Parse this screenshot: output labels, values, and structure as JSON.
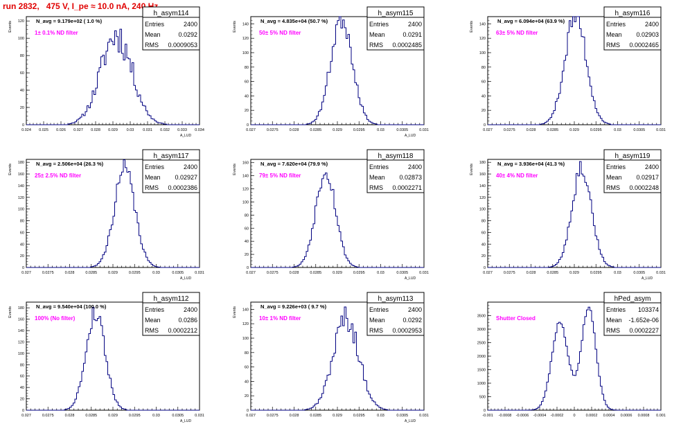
{
  "page_title": "run 2832,   475 V, I_pe ≈ 10.0 nA, 240 Hz",
  "colors": {
    "title": "#e00000",
    "annotation": "#ff00ff",
    "histogram": "#000080",
    "axis": "#000000"
  },
  "chart_data": [
    {
      "type": "bar",
      "name": "h_asym114",
      "ylabel": "Events",
      "xlabel": "A_LUD",
      "header": "N_avg = 9.179e+02 ( 1.0 %)",
      "annotation": "1± 0.1% ND filter",
      "stats": {
        "entries_label": "Entries",
        "entries": "2400",
        "mean_label": "Mean",
        "mean": "0.0292",
        "rms_label": "RMS",
        "rms": "0.0009053"
      },
      "xlim": [
        0.024,
        0.034
      ],
      "ylim": [
        0,
        125
      ],
      "x_ticks": [
        "0.024",
        "0.025",
        "0.026",
        "0.027",
        "0.028",
        "0.029",
        "0.03",
        "0.031",
        "0.032",
        "0.033",
        "0.034"
      ],
      "y_ticks": [
        "0",
        "20",
        "40",
        "60",
        "80",
        "100",
        "120"
      ],
      "hist": {
        "mean": 0.0292,
        "sigma": 0.0009053,
        "peak": 104,
        "bins": 100,
        "seed": 11,
        "jitter": 0.2
      }
    },
    {
      "type": "bar",
      "name": "h_asym115",
      "ylabel": "Events",
      "xlabel": "A_LUD",
      "header": "N_avg = 4.835e+04 (50.7 %)",
      "annotation": "50± 5% ND filter",
      "stats": {
        "entries_label": "Entries",
        "entries": "2400",
        "mean_label": "Mean",
        "mean": "0.0291",
        "rms_label": "RMS",
        "rms": "0.0002485"
      },
      "xlim": [
        0.027,
        0.031
      ],
      "ylim": [
        0,
        150
      ],
      "x_ticks": [
        "0.027",
        "0.0275",
        "0.028",
        "0.0285",
        "0.029",
        "0.0295",
        "0.03",
        "0.0305",
        "0.031"
      ],
      "y_ticks": [
        "0",
        "20",
        "40",
        "60",
        "80",
        "100",
        "120",
        "140"
      ],
      "hist": {
        "mean": 0.0291,
        "sigma": 0.0002485,
        "peak": 150,
        "bins": 100,
        "seed": 23,
        "jitter": 0.12
      }
    },
    {
      "type": "bar",
      "name": "h_asym116",
      "ylabel": "Events",
      "xlabel": "",
      "header": "N_avg = 6.094e+04 (63.9 %)",
      "annotation": "63± 5% ND filter",
      "stats": {
        "entries_label": "Entries",
        "entries": "2400",
        "mean_label": "Mean",
        "mean": "0.02903",
        "rms_label": "RMS",
        "rms": "0.0002465"
      },
      "xlim": [
        0.027,
        0.031
      ],
      "ylim": [
        0,
        150
      ],
      "x_ticks": [
        "0.027",
        "0.0275",
        "0.028",
        "0.0285",
        "0.029",
        "0.0295",
        "0.03",
        "0.0305",
        "0.031"
      ],
      "y_ticks": [
        "0",
        "20",
        "40",
        "60",
        "80",
        "100",
        "120",
        "140"
      ],
      "hist": {
        "mean": 0.02903,
        "sigma": 0.0002465,
        "peak": 152,
        "bins": 100,
        "seed": 37,
        "jitter": 0.12
      }
    },
    {
      "type": "bar",
      "name": "h_asym117",
      "ylabel": "Events",
      "xlabel": "A_LUD",
      "header": "N_avg = 2.506e+04 (26.3 %)",
      "annotation": "25± 2.5% ND filter",
      "stats": {
        "entries_label": "Entries",
        "entries": "2400",
        "mean_label": "Mean",
        "mean": "0.02927",
        "rms_label": "RMS",
        "rms": "0.0002386"
      },
      "xlim": [
        0.027,
        0.031
      ],
      "ylim": [
        0,
        185
      ],
      "x_ticks": [
        "0.027",
        "0.0275",
        "0.028",
        "0.0285",
        "0.029",
        "0.0295",
        "0.03",
        "0.0305",
        "0.031"
      ],
      "y_ticks": [
        "0",
        "20",
        "40",
        "60",
        "80",
        "100",
        "120",
        "140",
        "160",
        "180"
      ],
      "hist": {
        "mean": 0.02927,
        "sigma": 0.0002386,
        "peak": 168,
        "bins": 100,
        "seed": 41,
        "jitter": 0.1
      }
    },
    {
      "type": "bar",
      "name": "h_asym118",
      "ylabel": "Events",
      "xlabel": "A_LUD",
      "header": "N_avg = 7.620e+04 (79.9 %)",
      "annotation": "79± 5% ND filter",
      "stats": {
        "entries_label": "Entries",
        "entries": "2400",
        "mean_label": "Mean",
        "mean": "0.02873",
        "rms_label": "RMS",
        "rms": "0.0002271"
      },
      "xlim": [
        0.027,
        0.031
      ],
      "ylim": [
        0,
        165
      ],
      "x_ticks": [
        "0.027",
        "0.0275",
        "0.028",
        "0.0285",
        "0.029",
        "0.0295",
        "0.03",
        "0.0305",
        "0.031"
      ],
      "y_ticks": [
        "0",
        "20",
        "40",
        "60",
        "80",
        "100",
        "120",
        "140",
        "160"
      ],
      "hist": {
        "mean": 0.02873,
        "sigma": 0.0002271,
        "peak": 150,
        "bins": 100,
        "seed": 53,
        "jitter": 0.1
      }
    },
    {
      "type": "bar",
      "name": "h_asym119",
      "ylabel": "Events",
      "xlabel": "A_LUD",
      "header": "N_avg = 3.936e+04 (41.3 %)",
      "annotation": "40± 4% ND filter",
      "stats": {
        "entries_label": "Entries",
        "entries": "2400",
        "mean_label": "Mean",
        "mean": "0.02917",
        "rms_label": "RMS",
        "rms": "0.0002248"
      },
      "xlim": [
        0.027,
        0.031
      ],
      "ylim": [
        0,
        185
      ],
      "x_ticks": [
        "0.027",
        "0.0275",
        "0.028",
        "0.0285",
        "0.029",
        "0.0295",
        "0.03",
        "0.0305",
        "0.031"
      ],
      "y_ticks": [
        "0",
        "20",
        "40",
        "60",
        "80",
        "100",
        "120",
        "140",
        "160",
        "180"
      ],
      "hist": {
        "mean": 0.02917,
        "sigma": 0.0002248,
        "peak": 172,
        "bins": 100,
        "seed": 67,
        "jitter": 0.1
      }
    },
    {
      "type": "bar",
      "name": "h_asym112",
      "ylabel": "Events",
      "xlabel": "A_LUD",
      "header": "N_avg = 9.540e+04 (100.0 %)",
      "annotation": "100% (No filter)",
      "stats": {
        "entries_label": "Entries",
        "entries": "2400",
        "mean_label": "Mean",
        "mean": "0.0286",
        "rms_label": "RMS",
        "rms": "0.0002212"
      },
      "xlim": [
        0.027,
        0.031
      ],
      "ylim": [
        0,
        190
      ],
      "x_ticks": [
        "0.027",
        "0.0275",
        "0.028",
        "0.0285",
        "0.029",
        "0.0295",
        "0.03",
        "0.0305",
        "0.031"
      ],
      "y_ticks": [
        "0",
        "20",
        "40",
        "60",
        "80",
        "100",
        "120",
        "140",
        "160",
        "180"
      ],
      "hist": {
        "mean": 0.0286,
        "sigma": 0.0002212,
        "peak": 172,
        "bins": 100,
        "seed": 79,
        "jitter": 0.1
      }
    },
    {
      "type": "bar",
      "name": "h_asym113",
      "ylabel": "Events",
      "xlabel": "A_LUD",
      "header": "N_avg = 9.226e+03 ( 9.7 %)",
      "annotation": "10± 1% ND filter",
      "stats": {
        "entries_label": "Entries",
        "entries": "2400",
        "mean_label": "Mean",
        "mean": "0.0292",
        "rms_label": "RMS",
        "rms": "0.0002953"
      },
      "xlim": [
        0.027,
        0.031
      ],
      "ylim": [
        0,
        150
      ],
      "x_ticks": [
        "0.027",
        "0.0275",
        "0.028",
        "0.0285",
        "0.029",
        "0.0295",
        "0.03",
        "0.0305",
        "0.031"
      ],
      "y_ticks": [
        "0",
        "20",
        "40",
        "60",
        "80",
        "100",
        "120",
        "140"
      ],
      "hist": {
        "mean": 0.0292,
        "sigma": 0.0002953,
        "peak": 128,
        "bins": 100,
        "seed": 97,
        "jitter": 0.14
      }
    },
    {
      "type": "bar",
      "name": "hPed_asym",
      "ylabel": "",
      "xlabel": "",
      "header": "",
      "annotation": "Shutter Closed",
      "stats": {
        "entries_label": "Entries",
        "entries": "103374",
        "mean_label": "Mean",
        "mean": "-1.652e-06",
        "rms_label": "RMS",
        "rms": "0.0002227"
      },
      "xlim": [
        -0.001,
        0.001
      ],
      "ylim": [
        0,
        4000
      ],
      "x_ticks": [
        "-0.001",
        "-0.0008",
        "-0.0006",
        "-0.0004",
        "-0.0002",
        "0",
        "0.0002",
        "0.0004",
        "0.0006",
        "0.0008",
        "0.001"
      ],
      "y_ticks": [
        "0",
        "500",
        "1000",
        "1500",
        "2000",
        "2500",
        "3000",
        "3500"
      ],
      "hist": {
        "bimodal": [
          {
            "mean": -0.000165,
            "sigma": 9.5e-05,
            "peak": 3250
          },
          {
            "mean": 0.000165,
            "sigma": 8.5e-05,
            "peak": 3800
          }
        ],
        "bins": 100,
        "seed": 5,
        "jitter": 0.03
      }
    }
  ]
}
